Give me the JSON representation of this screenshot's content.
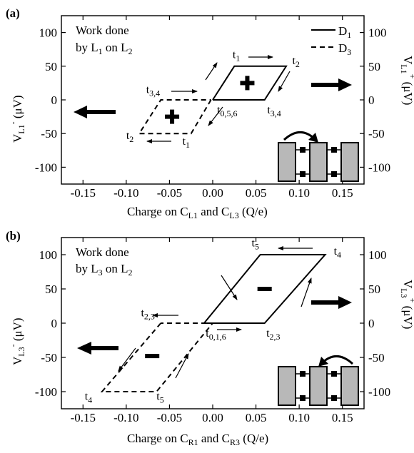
{
  "chart_data": [
    {
      "type": "line",
      "panel_label": "(a)",
      "description_line1": "Work done",
      "description_line2_prefix": "by L",
      "description_line2_sub1": "1",
      "description_line2_mid": " on L",
      "description_line2_sub2": "2",
      "legend": [
        {
          "label": "D",
          "sub": "1",
          "style": "solid"
        },
        {
          "label": "D",
          "sub": "3",
          "style": "dashed"
        }
      ],
      "xlabel": {
        "text": "Charge on C",
        "sub1": "L1",
        "mid": " and C",
        "sub2": "L3",
        "suffix": " (Q/e)"
      },
      "ylabel_left": {
        "text": "V",
        "sub": "L1",
        "sup": "-",
        "units": " (μV)"
      },
      "ylabel_right": {
        "text": "V",
        "sub": "L1",
        "sup": "+",
        "units": " (μV)"
      },
      "xlim": [
        -0.175,
        0.175
      ],
      "ylim": [
        -125,
        125
      ],
      "xticks": [
        -0.15,
        -0.1,
        -0.05,
        0.0,
        0.05,
        0.1,
        0.15
      ],
      "xtick_labels": [
        "-0.15",
        "-0.10",
        "-0.05",
        "0.00",
        "0.05",
        "0.10",
        "0.15"
      ],
      "yticks": [
        -100,
        -50,
        0,
        50,
        100
      ],
      "ytick_labels": [
        "-100",
        "-50",
        "0",
        "50",
        "100"
      ],
      "series": [
        {
          "name": "D1",
          "style": "solid",
          "x": [
            0.0,
            0.025,
            0.085,
            0.06,
            0.0
          ],
          "y": [
            0,
            50,
            50,
            0,
            0
          ]
        },
        {
          "name": "D3",
          "style": "dashed",
          "x": [
            -0.002,
            -0.025,
            -0.085,
            -0.06,
            -0.002
          ],
          "y": [
            0,
            -50,
            -50,
            0,
            0
          ]
        }
      ],
      "sign_markers": [
        {
          "symbol": "+",
          "x": 0.04,
          "y": 25
        },
        {
          "symbol": "+",
          "x": -0.047,
          "y": -25
        }
      ],
      "time_labels": [
        {
          "text": "t",
          "sub": "1",
          "x": 0.023,
          "y": 62
        },
        {
          "text": "t",
          "sub": "2",
          "x": 0.092,
          "y": 53
        },
        {
          "text": "t",
          "sub": "3,4",
          "x": -0.077,
          "y": 10
        },
        {
          "text": "t",
          "sub": "0,5,6",
          "x": 0.005,
          "y": -20
        },
        {
          "text": "t",
          "sub": "3,4",
          "x": 0.063,
          "y": -20
        },
        {
          "text": "t",
          "sub": "2",
          "x": -0.1,
          "y": -58
        },
        {
          "text": "t",
          "sub": "1",
          "x": -0.035,
          "y": -67
        }
      ]
    },
    {
      "type": "line",
      "panel_label": "(b)",
      "description_line1": "Work done",
      "description_line2_prefix": "by L",
      "description_line2_sub1": "3",
      "description_line2_mid": " on L",
      "description_line2_sub2": "2",
      "xlabel": {
        "text": "Charge on C",
        "sub1": "R1",
        "mid": " and C",
        "sub2": "R3",
        "suffix": " (Q/e)"
      },
      "ylabel_left": {
        "text": "V",
        "sub": "L3",
        "sup": "-",
        "units": " (μV)"
      },
      "ylabel_right": {
        "text": "V",
        "sub": "L3",
        "sup": "+",
        "units": " (μV)"
      },
      "xlim": [
        -0.175,
        0.175
      ],
      "ylim": [
        -125,
        125
      ],
      "xticks": [
        -0.15,
        -0.1,
        -0.05,
        0.0,
        0.05,
        0.1,
        0.15
      ],
      "xtick_labels": [
        "-0.15",
        "-0.10",
        "-0.05",
        "0.00",
        "0.05",
        "0.10",
        "0.15"
      ],
      "yticks": [
        -100,
        -50,
        0,
        50,
        100
      ],
      "ytick_labels": [
        "-100",
        "-50",
        "0",
        "50",
        "100"
      ],
      "series": [
        {
          "name": "D1",
          "style": "solid",
          "x": [
            -0.01,
            0.06,
            0.13,
            0.055,
            -0.01
          ],
          "y": [
            0,
            0,
            100,
            100,
            0
          ]
        },
        {
          "name": "D3",
          "style": "dashed",
          "x": [
            -0.06,
            -0.128,
            -0.065,
            0.0,
            -0.06
          ],
          "y": [
            0,
            -100,
            -100,
            0,
            0
          ]
        }
      ],
      "sign_markers": [
        {
          "symbol": "-",
          "x": 0.06,
          "y": 50
        },
        {
          "symbol": "-",
          "x": -0.07,
          "y": -48
        }
      ],
      "time_labels": [
        {
          "text": "t",
          "sub": "5",
          "x": 0.045,
          "y": 112
        },
        {
          "text": "t",
          "sub": "4",
          "x": 0.14,
          "y": 100
        },
        {
          "text": "t",
          "sub": "2,3",
          "x": -0.083,
          "y": 10
        },
        {
          "text": "t",
          "sub": "0,1,6",
          "x": -0.008,
          "y": -20
        },
        {
          "text": "t",
          "sub": "2,3",
          "x": 0.062,
          "y": -20
        },
        {
          "text": "t",
          "sub": "4",
          "x": -0.148,
          "y": -112
        },
        {
          "text": "t",
          "sub": "5",
          "x": -0.065,
          "y": -112
        }
      ]
    }
  ],
  "arrow_color": "#000000",
  "cell_fill": "#b8b8b8"
}
